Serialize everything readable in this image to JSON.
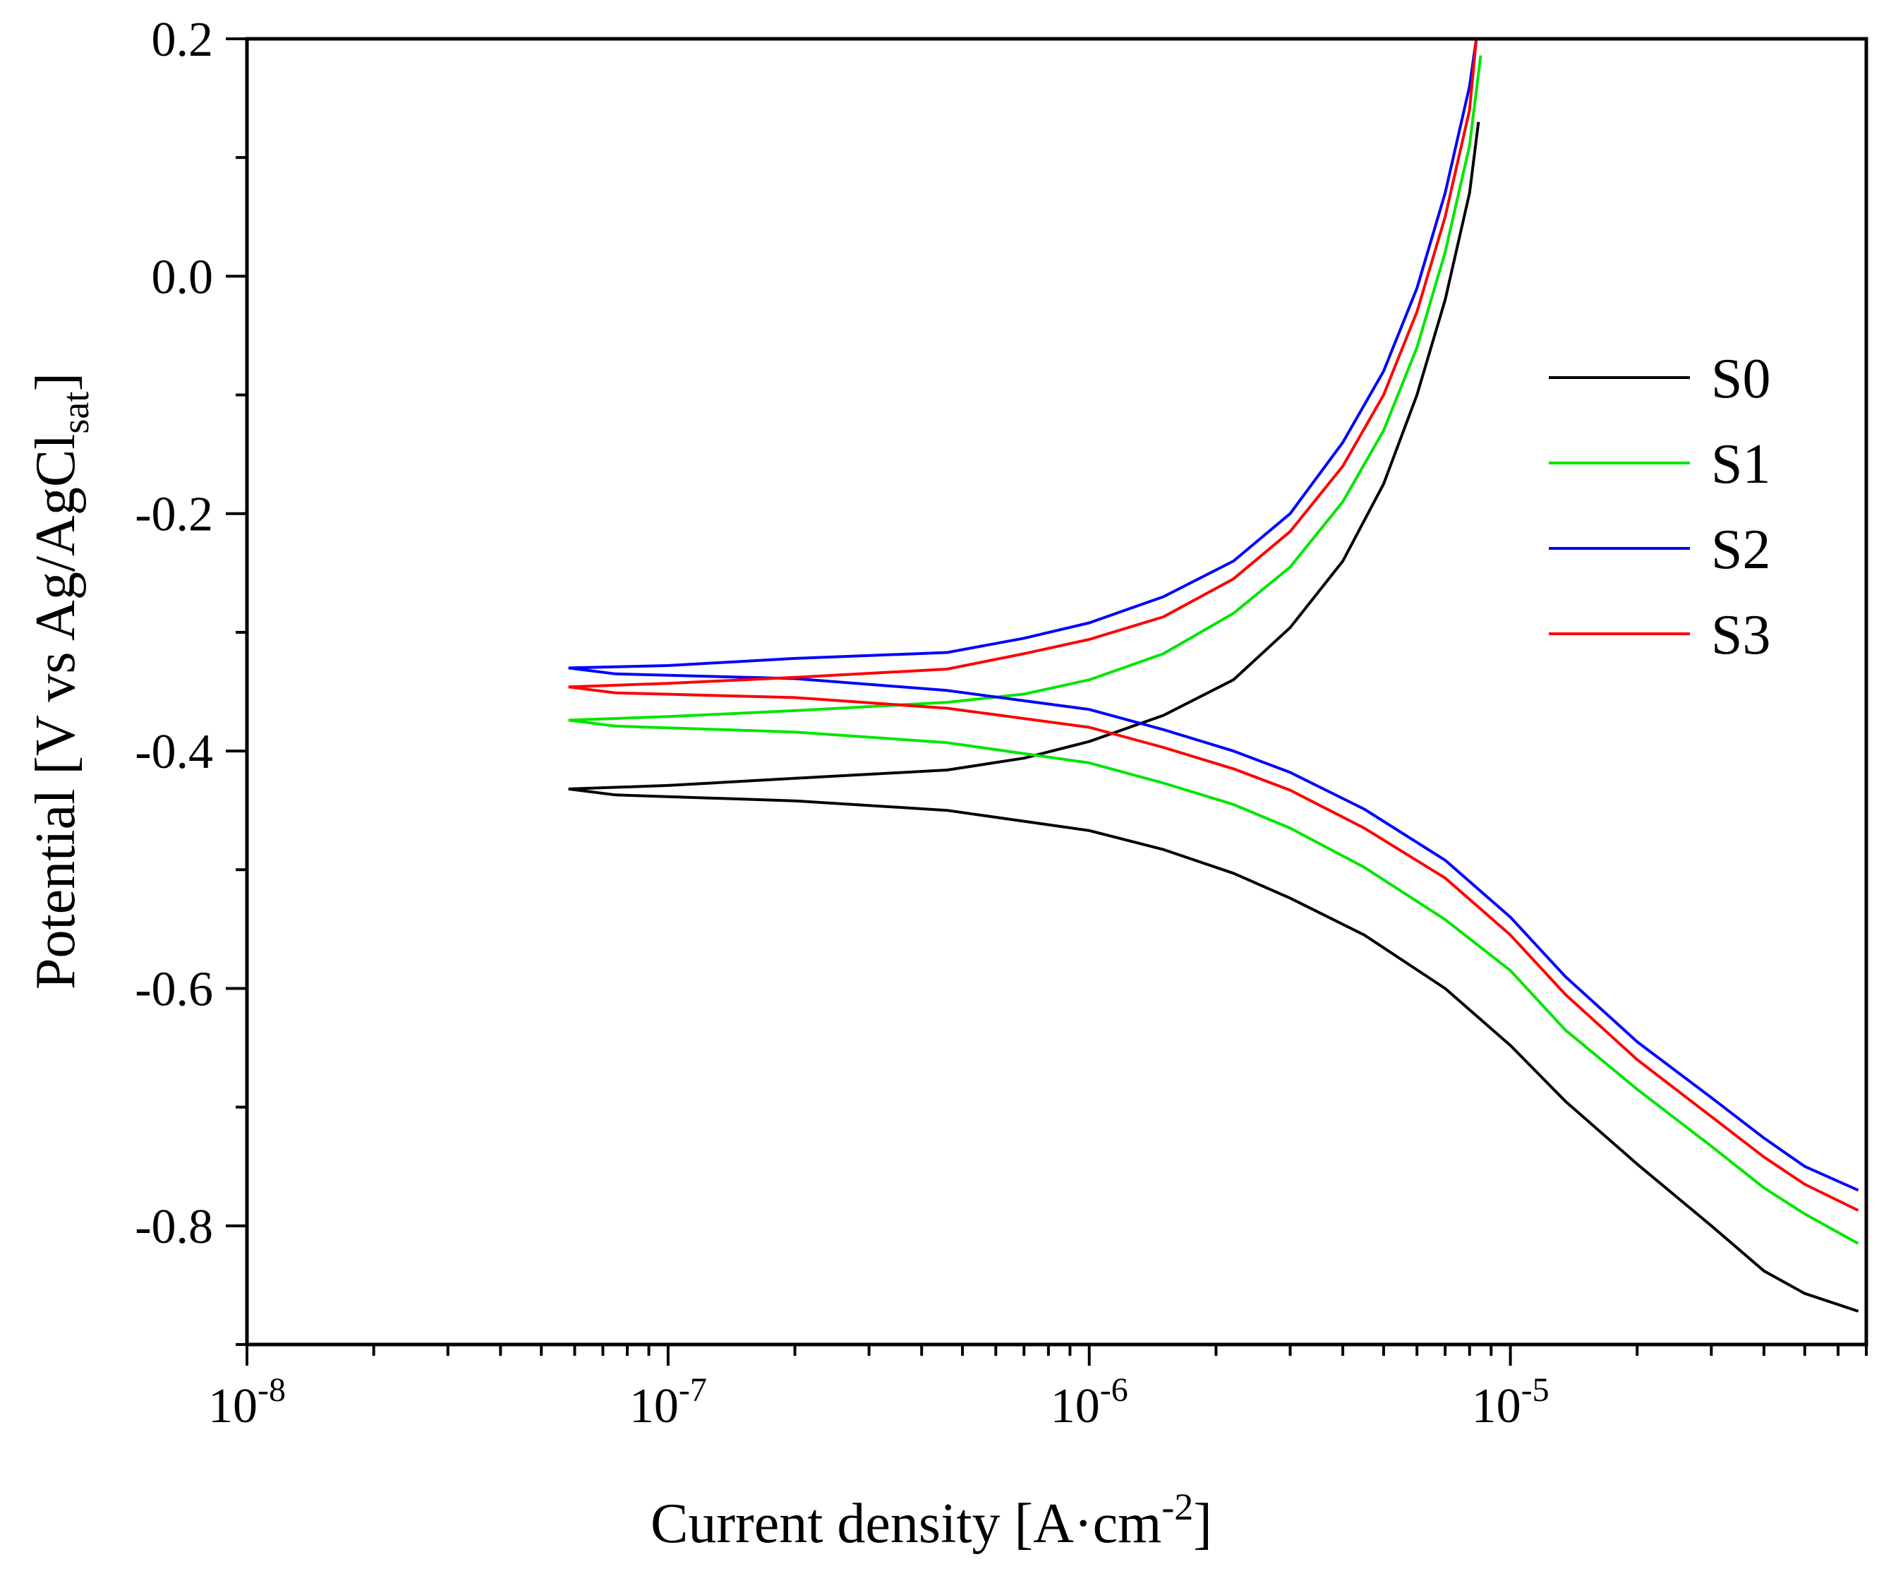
{
  "chart_data": {
    "type": "line",
    "title": "",
    "xlabel": {
      "text": "Current density [A·cm",
      "sup": "-2",
      "suffix": "]"
    },
    "ylabel": {
      "text": "Potential [V vs Ag/AgCl",
      "sub": "sat",
      "suffix": "]"
    },
    "xscale": "log",
    "xlim": [
      1e-08,
      7e-05
    ],
    "ylim": [
      -0.9,
      0.2
    ],
    "x_ticks": [
      {
        "base": "10",
        "exp": "-8",
        "value": 1e-08
      },
      {
        "base": "10",
        "exp": "-7",
        "value": 1e-07
      },
      {
        "base": "10",
        "exp": "-6",
        "value": 1e-06
      },
      {
        "base": "10",
        "exp": "-5",
        "value": 1e-05
      }
    ],
    "y_ticks": [
      {
        "label": "0.2",
        "value": 0.2
      },
      {
        "label": "0.0",
        "value": 0.0
      },
      {
        "label": "-0.2",
        "value": -0.2
      },
      {
        "label": "-0.4",
        "value": -0.4
      },
      {
        "label": "-0.6",
        "value": -0.6
      },
      {
        "label": "-0.8",
        "value": -0.8
      }
    ],
    "legend_position": "right",
    "series": [
      {
        "name": "S0",
        "color": "#000000",
        "anodic": [
          [
            5.8e-08,
            -0.432
          ],
          [
            1e-07,
            -0.429
          ],
          [
            2e-07,
            -0.423
          ],
          [
            4.6e-07,
            -0.416
          ],
          [
            7e-07,
            -0.406
          ],
          [
            1e-06,
            -0.392
          ],
          [
            1.5e-06,
            -0.37
          ],
          [
            2.2e-06,
            -0.34
          ],
          [
            3e-06,
            -0.296
          ],
          [
            4e-06,
            -0.24
          ],
          [
            5e-06,
            -0.175
          ],
          [
            6e-06,
            -0.1
          ],
          [
            7e-06,
            -0.02
          ],
          [
            8e-06,
            0.07
          ],
          [
            8.4e-06,
            0.13
          ]
        ],
        "cathodic": [
          [
            5.8e-08,
            -0.432
          ],
          [
            7.5e-08,
            -0.437
          ],
          [
            2e-07,
            -0.442
          ],
          [
            4.6e-07,
            -0.45
          ],
          [
            1e-06,
            -0.467
          ],
          [
            1.5e-06,
            -0.483
          ],
          [
            2.2e-06,
            -0.503
          ],
          [
            3e-06,
            -0.524
          ],
          [
            4.5e-06,
            -0.555
          ],
          [
            7e-06,
            -0.6
          ],
          [
            1e-05,
            -0.648
          ],
          [
            1.35e-05,
            -0.695
          ],
          [
            2e-05,
            -0.748
          ],
          [
            3e-05,
            -0.8
          ],
          [
            4e-05,
            -0.838
          ],
          [
            5e-05,
            -0.857
          ],
          [
            6.7e-05,
            -0.872
          ]
        ]
      },
      {
        "name": "S1",
        "color": "#00e600",
        "anodic": [
          [
            5.8e-08,
            -0.374
          ],
          [
            1e-07,
            -0.371
          ],
          [
            2e-07,
            -0.366
          ],
          [
            4.6e-07,
            -0.359
          ],
          [
            7e-07,
            -0.352
          ],
          [
            1e-06,
            -0.34
          ],
          [
            1.5e-06,
            -0.318
          ],
          [
            2.2e-06,
            -0.284
          ],
          [
            3e-06,
            -0.245
          ],
          [
            4e-06,
            -0.19
          ],
          [
            5e-06,
            -0.13
          ],
          [
            6e-06,
            -0.06
          ],
          [
            7e-06,
            0.02
          ],
          [
            8e-06,
            0.11
          ],
          [
            8.5e-06,
            0.186
          ]
        ],
        "cathodic": [
          [
            5.8e-08,
            -0.374
          ],
          [
            7.5e-08,
            -0.379
          ],
          [
            2e-07,
            -0.384
          ],
          [
            4.6e-07,
            -0.393
          ],
          [
            1e-06,
            -0.41
          ],
          [
            1.5e-06,
            -0.427
          ],
          [
            2.2e-06,
            -0.445
          ],
          [
            3e-06,
            -0.465
          ],
          [
            4.5e-06,
            -0.498
          ],
          [
            7e-06,
            -0.542
          ],
          [
            1e-05,
            -0.585
          ],
          [
            1.35e-05,
            -0.635
          ],
          [
            2e-05,
            -0.685
          ],
          [
            3e-05,
            -0.733
          ],
          [
            4e-05,
            -0.768
          ],
          [
            5e-05,
            -0.79
          ],
          [
            6.7e-05,
            -0.815
          ]
        ]
      },
      {
        "name": "S2",
        "color": "#0000ff",
        "anodic": [
          [
            5.8e-08,
            -0.33
          ],
          [
            1e-07,
            -0.328
          ],
          [
            2e-07,
            -0.322
          ],
          [
            4.6e-07,
            -0.317
          ],
          [
            7e-07,
            -0.305
          ],
          [
            1e-06,
            -0.292
          ],
          [
            1.5e-06,
            -0.27
          ],
          [
            2.2e-06,
            -0.24
          ],
          [
            3e-06,
            -0.2
          ],
          [
            4e-06,
            -0.14
          ],
          [
            5e-06,
            -0.08
          ],
          [
            6e-06,
            -0.01
          ],
          [
            7e-06,
            0.07
          ],
          [
            8e-06,
            0.16
          ],
          [
            8.3e-06,
            0.2
          ]
        ],
        "cathodic": [
          [
            5.8e-08,
            -0.33
          ],
          [
            7.5e-08,
            -0.335
          ],
          [
            2e-07,
            -0.339
          ],
          [
            4.6e-07,
            -0.349
          ],
          [
            1e-06,
            -0.365
          ],
          [
            1.5e-06,
            -0.382
          ],
          [
            2.2e-06,
            -0.4
          ],
          [
            3e-06,
            -0.418
          ],
          [
            4.5e-06,
            -0.449
          ],
          [
            7e-06,
            -0.492
          ],
          [
            1e-05,
            -0.54
          ],
          [
            1.35e-05,
            -0.59
          ],
          [
            2e-05,
            -0.645
          ],
          [
            3e-05,
            -0.692
          ],
          [
            4e-05,
            -0.726
          ],
          [
            5e-05,
            -0.75
          ],
          [
            6.7e-05,
            -0.77
          ]
        ]
      },
      {
        "name": "S3",
        "color": "#ff0000",
        "anodic": [
          [
            5.8e-08,
            -0.346
          ],
          [
            1e-07,
            -0.343
          ],
          [
            2e-07,
            -0.338
          ],
          [
            4.6e-07,
            -0.331
          ],
          [
            7e-07,
            -0.318
          ],
          [
            1e-06,
            -0.306
          ],
          [
            1.5e-06,
            -0.287
          ],
          [
            2.2e-06,
            -0.255
          ],
          [
            3e-06,
            -0.215
          ],
          [
            4e-06,
            -0.16
          ],
          [
            5e-06,
            -0.1
          ],
          [
            6e-06,
            -0.03
          ],
          [
            7e-06,
            0.05
          ],
          [
            8e-06,
            0.14
          ],
          [
            8.3e-06,
            0.2
          ]
        ],
        "cathodic": [
          [
            5.8e-08,
            -0.346
          ],
          [
            7.5e-08,
            -0.351
          ],
          [
            2e-07,
            -0.355
          ],
          [
            4.6e-07,
            -0.364
          ],
          [
            1e-06,
            -0.38
          ],
          [
            1.5e-06,
            -0.397
          ],
          [
            2.2e-06,
            -0.415
          ],
          [
            3e-06,
            -0.433
          ],
          [
            4.5e-06,
            -0.465
          ],
          [
            7e-06,
            -0.507
          ],
          [
            1e-05,
            -0.555
          ],
          [
            1.35e-05,
            -0.605
          ],
          [
            2e-05,
            -0.66
          ],
          [
            3e-05,
            -0.708
          ],
          [
            4e-05,
            -0.742
          ],
          [
            5e-05,
            -0.765
          ],
          [
            6.7e-05,
            -0.787
          ]
        ]
      }
    ]
  }
}
